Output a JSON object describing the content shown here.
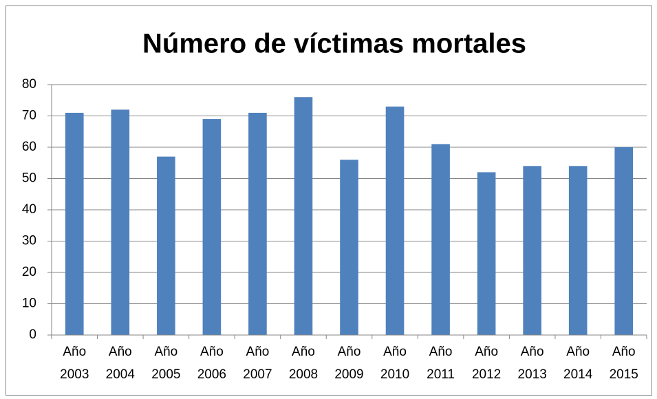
{
  "chart_data": {
    "type": "bar",
    "title": "Número de víctimas mortales",
    "categories": [
      "Año 2003",
      "Año 2004",
      "Año 2005",
      "Año 2006",
      "Año 2007",
      "Año 2008",
      "Año 2009",
      "Año 2010",
      "Año 2011",
      "Año 2012",
      "Año 2013",
      "Año 2014",
      "Año 2015"
    ],
    "values": [
      71,
      72,
      57,
      69,
      71,
      76,
      56,
      73,
      61,
      52,
      54,
      54,
      60
    ],
    "color": "#4f81bd",
    "ylim": [
      0,
      80
    ],
    "yticks": [
      0,
      10,
      20,
      30,
      40,
      50,
      60,
      70,
      80
    ],
    "grid": true
  }
}
